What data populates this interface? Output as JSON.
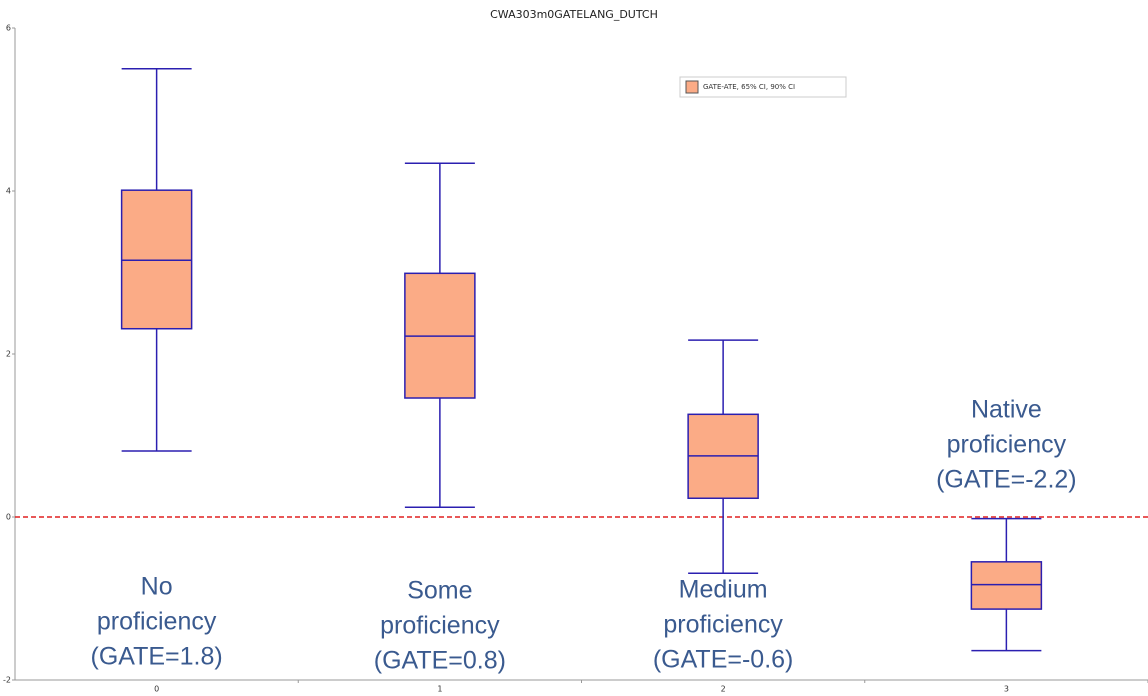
{
  "chart_data": {
    "type": "box",
    "title": "CWA303m0GATELANG_DUTCH",
    "categories": [
      "0",
      "1",
      "2",
      "3"
    ],
    "low": [
      0.81,
      0.12,
      -0.69,
      -1.64
    ],
    "q1": [
      2.31,
      1.46,
      0.23,
      -1.13
    ],
    "median": [
      3.15,
      2.22,
      0.75,
      -0.83
    ],
    "q3": [
      4.01,
      2.99,
      1.26,
      -0.55
    ],
    "high": [
      5.5,
      4.34,
      2.17,
      -0.02
    ],
    "series_name": "GATE-ATE, 65% CI, 90% CI",
    "color": "#fbab86",
    "edge_color": "#2b1fb0",
    "ylim": [
      -2,
      6
    ],
    "yticks": [
      -2,
      0,
      2,
      4,
      6
    ],
    "xlim": [
      -0.5,
      3.5
    ],
    "reference_line": {
      "value": 0,
      "color": "#e02020"
    },
    "legend": "upper right",
    "annotations": [
      {
        "lines": [
          "No",
          "proficiency",
          "(GATE=1.8)"
        ]
      },
      {
        "lines": [
          "Some",
          "proficiency",
          "(GATE=0.8)"
        ]
      },
      {
        "lines": [
          "Medium",
          "proficiency",
          "(GATE=-0.6)"
        ]
      },
      {
        "lines": [
          "Native",
          "proficiency",
          "(GATE=-2.2)"
        ]
      }
    ]
  }
}
